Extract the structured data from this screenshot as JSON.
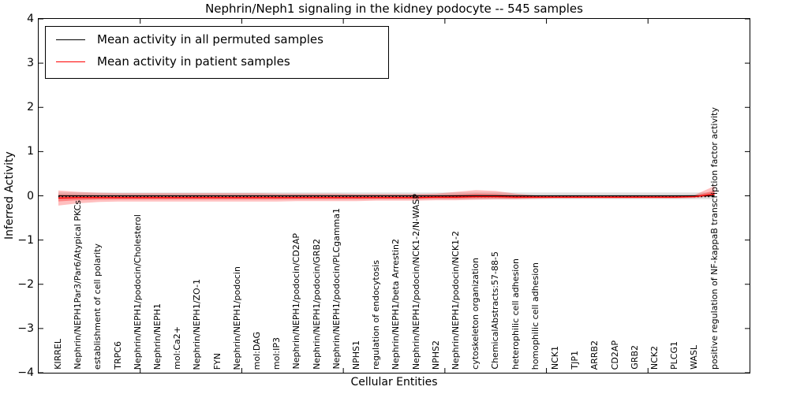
{
  "figure": {
    "title": "Nephrin/Neph1 signaling in the kidney podocyte -- 545 samples",
    "xlabel": "Cellular Entities",
    "ylabel": "Inferred Activity"
  },
  "legend": {
    "items": [
      {
        "label": "Mean activity in all permuted samples",
        "color": "#000000"
      },
      {
        "label": "Mean activity in patient samples",
        "color": "#ff0000"
      }
    ]
  },
  "axes": {
    "ytick_labels": [
      "4",
      "3",
      "2",
      "1",
      "0",
      "−1",
      "−2",
      "−3",
      "−4"
    ]
  },
  "chart_data": {
    "type": "line",
    "title": "Nephrin/Neph1 signaling in the kidney podocyte -- 545 samples",
    "xlabel": "Cellular Entities",
    "ylabel": "Inferred Activity",
    "ylim": [
      -4,
      4
    ],
    "xlim": [
      0,
      35
    ],
    "yticks": [
      4,
      3,
      2,
      1,
      0,
      -1,
      -2,
      -3,
      -4
    ],
    "xticks": [
      5,
      10,
      15,
      20,
      25,
      30
    ],
    "grid": false,
    "legend_position": "upper left",
    "categories": [
      "KIRREL",
      "Nephrin/NEPH1Par3/Par6/Atypical PKCs",
      "establishment of cell polarity",
      "TRPC6",
      "Nephrin/NEPH1/podocin/Cholesterol",
      "Nephrin/NEPH1",
      "mol:Ca2+",
      "Nephrin/NEPH1/ZO-1",
      "FYN",
      "Nephrin/NEPH1/podocin",
      "mol:DAG",
      "mol:IP3",
      "Nephrin/NEPH1/podocin/CD2AP",
      "Nephrin/NEPH1/podocin/GRB2",
      "Nephrin/NEPH1/podocin/PLCgamma1",
      "NPHS1",
      "regulation of endocytosis",
      "Nephrin/NEPH1/beta Arrestin2",
      "Nephrin/NEPH1/podocin/NCK1-2/N-WASP",
      "NPHS2",
      "Nephrin/NEPH1/podocin/NCK1-2",
      "cytoskeleton organization",
      "ChemicalAbstracts:57-88-5",
      "heterophilic cell adhesion",
      "homophilic cell adhesion",
      "NCK1",
      "TJP1",
      "ARRB2",
      "CD2AP",
      "GRB2",
      "NCK2",
      "PLCG1",
      "WASL",
      "positive regulation of NF-kappaB transcription factor activity"
    ],
    "series": [
      {
        "name": "Mean activity in all permuted samples",
        "color": "#000000",
        "values": [
          0,
          0,
          0,
          0,
          0,
          0,
          0,
          0,
          0,
          0,
          0,
          0,
          0,
          0,
          0,
          0,
          0,
          0,
          0,
          0,
          0,
          0,
          0,
          0,
          0,
          0,
          0,
          0,
          0,
          0,
          0,
          0,
          0,
          0
        ]
      },
      {
        "name": "Mean activity in patient samples",
        "color": "#ff0000",
        "values": [
          -0.05,
          -0.04,
          -0.04,
          -0.04,
          -0.04,
          -0.04,
          -0.04,
          -0.04,
          -0.04,
          -0.04,
          -0.04,
          -0.04,
          -0.04,
          -0.04,
          -0.04,
          -0.04,
          -0.04,
          -0.04,
          -0.04,
          -0.03,
          -0.03,
          -0.02,
          -0.02,
          -0.03,
          -0.03,
          -0.03,
          -0.03,
          -0.03,
          -0.03,
          -0.03,
          -0.03,
          -0.03,
          -0.02,
          0.04
        ]
      }
    ],
    "patient_band_upper": [
      0.17,
      0.13,
      0.11,
      0.1,
      0.1,
      0.1,
      0.1,
      0.1,
      0.1,
      0.1,
      0.1,
      0.09,
      0.09,
      0.09,
      0.09,
      0.08,
      0.08,
      0.08,
      0.08,
      0.08,
      0.12,
      0.15,
      0.13,
      0.08,
      0.04,
      0.03,
      0.03,
      0.03,
      0.03,
      0.03,
      0.03,
      0.03,
      0.04,
      0.18
    ],
    "patient_band_lower": [
      0.17,
      0.13,
      0.1,
      0.09,
      0.09,
      0.09,
      0.09,
      0.09,
      0.09,
      0.09,
      0.09,
      0.09,
      0.08,
      0.08,
      0.08,
      0.08,
      0.07,
      0.07,
      0.07,
      0.07,
      0.07,
      0.07,
      0.06,
      0.05,
      0.04,
      0.03,
      0.03,
      0.03,
      0.03,
      0.03,
      0.03,
      0.03,
      0.03,
      0.05
    ],
    "permuted_band": {
      "halfwidth": 0.075,
      "color": "#000000",
      "alpha": 0.12
    },
    "extra_lines": [
      {
        "style": "dotted",
        "color": "#000000",
        "value": -0.02
      }
    ]
  }
}
